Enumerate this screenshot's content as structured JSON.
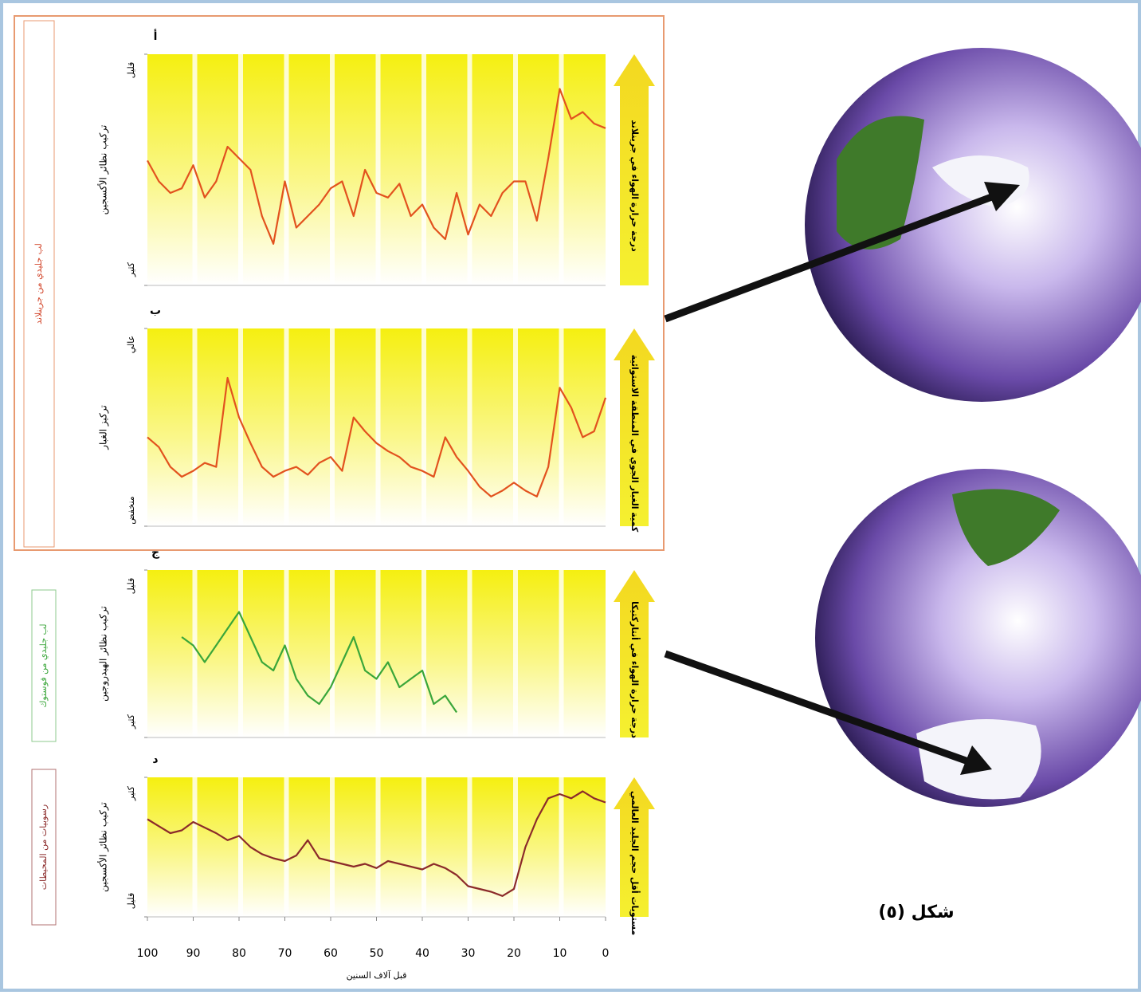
{
  "caption": "شكل (٥)",
  "chart_data": [
    {
      "type": "line",
      "panel_label": "أ",
      "core_label": "لب جليدي من جرينلاند",
      "ylabel": "تركيب نظائر الأكسجين",
      "side_label": "درجة حرارة الهواء في جرينلاند",
      "x": [
        100,
        97.5,
        95,
        92.5,
        90,
        87.5,
        85,
        82.5,
        80,
        77.5,
        75,
        72.5,
        70,
        67.5,
        65,
        62.5,
        60,
        57.5,
        55,
        52.5,
        50,
        47.5,
        45,
        42.5,
        40,
        37.5,
        35,
        32.5,
        30,
        27.5,
        25,
        22.5,
        20,
        17.5,
        15,
        12.5,
        10,
        7.5,
        5,
        2.5,
        0
      ],
      "xlim": [
        100,
        0
      ],
      "ylim": [
        0,
        100
      ],
      "yticks": [
        {
          "value": 100,
          "label": "قليل"
        },
        {
          "value": 0,
          "label": "كثير"
        }
      ],
      "series": [
        {
          "color": "#e2521e",
          "values": [
            54,
            45,
            40,
            42,
            52,
            38,
            45,
            60,
            55,
            50,
            30,
            18,
            45,
            25,
            30,
            35,
            42,
            45,
            30,
            50,
            40,
            38,
            44,
            30,
            35,
            25,
            20,
            40,
            22,
            35,
            30,
            40,
            45,
            45,
            28,
            55,
            85,
            72,
            75,
            70,
            68
          ]
        }
      ]
    },
    {
      "type": "line",
      "panel_label": "ب",
      "ylabel": "تركيز الغبار",
      "side_label": "كمية الغبار الجوي في المنطقة الاستوائية",
      "x": [
        100,
        97.5,
        95,
        92.5,
        90,
        87.5,
        85,
        82.5,
        80,
        77.5,
        75,
        72.5,
        70,
        67.5,
        65,
        62.5,
        60,
        57.5,
        55,
        52.5,
        50,
        47.5,
        45,
        42.5,
        40,
        37.5,
        35,
        32.5,
        30,
        27.5,
        25,
        22.5,
        20,
        17.5,
        15,
        12.5,
        10,
        7.5,
        5,
        2.5,
        0
      ],
      "xlim": [
        100,
        0
      ],
      "ylim": [
        0,
        100
      ],
      "yticks": [
        {
          "value": 100,
          "label": "عالي"
        },
        {
          "value": 0,
          "label": "منخفض"
        }
      ],
      "series": [
        {
          "color": "#e2521e",
          "values": [
            45,
            40,
            30,
            25,
            28,
            32,
            30,
            75,
            55,
            42,
            30,
            25,
            28,
            30,
            26,
            32,
            35,
            28,
            55,
            48,
            42,
            38,
            35,
            30,
            28,
            25,
            45,
            35,
            28,
            20,
            15,
            18,
            22,
            18,
            15,
            30,
            70,
            60,
            45,
            48,
            65
          ]
        }
      ]
    },
    {
      "type": "line",
      "panel_label": "ج",
      "core_label": "لب جليدي من فوستوك",
      "ylabel": "تركيب نظائر الهيدروجين",
      "side_label": "درجة حرارة الهواء في أنتاركتيكا",
      "x": [
        100,
        97.5,
        95,
        92.5,
        90,
        87.5,
        85,
        82.5,
        80,
        77.5,
        75,
        72.5,
        70,
        67.5,
        65,
        62.5,
        60,
        57.5,
        55,
        52.5,
        50,
        47.5,
        45,
        42.5,
        40,
        37.5,
        35,
        32.5,
        30,
        27.5,
        25,
        22.5,
        20,
        17.5,
        15,
        12.5,
        10,
        7.5,
        5,
        2.5,
        0
      ],
      "xlim": [
        100,
        0
      ],
      "ylim": [
        0,
        100
      ],
      "yticks": [
        {
          "value": 100,
          "label": "قليل"
        },
        {
          "value": 0,
          "label": "كثير"
        }
      ],
      "series": [
        {
          "color": "#3aa63a",
          "values": [
            null,
            null,
            null,
            60,
            55,
            45,
            55,
            65,
            75,
            60,
            45,
            40,
            55,
            35,
            25,
            20,
            30,
            45,
            60,
            40,
            35,
            45,
            30,
            35,
            40,
            20,
            25,
            15,
            null,
            null,
            null,
            null,
            null,
            null,
            null,
            null,
            null,
            null,
            null,
            null,
            null
          ]
        }
      ]
    },
    {
      "type": "line",
      "panel_label": "د",
      "core_label": "رسوبيات من المحيطات",
      "ylabel": "تركيب نظائر الأكسجين",
      "side_label": "مستويات أقل حجم الجليد العالمي",
      "xlabel": "قبل آلاف السنين",
      "x": [
        100,
        97.5,
        95,
        92.5,
        90,
        87.5,
        85,
        82.5,
        80,
        77.5,
        75,
        72.5,
        70,
        67.5,
        65,
        62.5,
        60,
        57.5,
        55,
        52.5,
        50,
        47.5,
        45,
        42.5,
        40,
        37.5,
        35,
        32.5,
        30,
        27.5,
        25,
        22.5,
        20,
        17.5,
        15,
        12.5,
        10,
        7.5,
        5,
        2.5,
        0
      ],
      "xlim": [
        100,
        0
      ],
      "ylim": [
        0,
        100
      ],
      "xticks": [
        100,
        90,
        80,
        70,
        60,
        50,
        40,
        30,
        20,
        10,
        0
      ],
      "yticks": [
        {
          "value": 100,
          "label": "كثير"
        },
        {
          "value": 0,
          "label": "قليل"
        }
      ],
      "series": [
        {
          "color": "#8b2a2a",
          "values": [
            70,
            65,
            60,
            62,
            68,
            64,
            60,
            55,
            58,
            50,
            45,
            42,
            40,
            44,
            55,
            42,
            40,
            38,
            36,
            38,
            35,
            40,
            38,
            36,
            34,
            38,
            35,
            30,
            22,
            20,
            18,
            15,
            20,
            50,
            70,
            85,
            88,
            85,
            90,
            85,
            82
          ]
        }
      ]
    }
  ]
}
